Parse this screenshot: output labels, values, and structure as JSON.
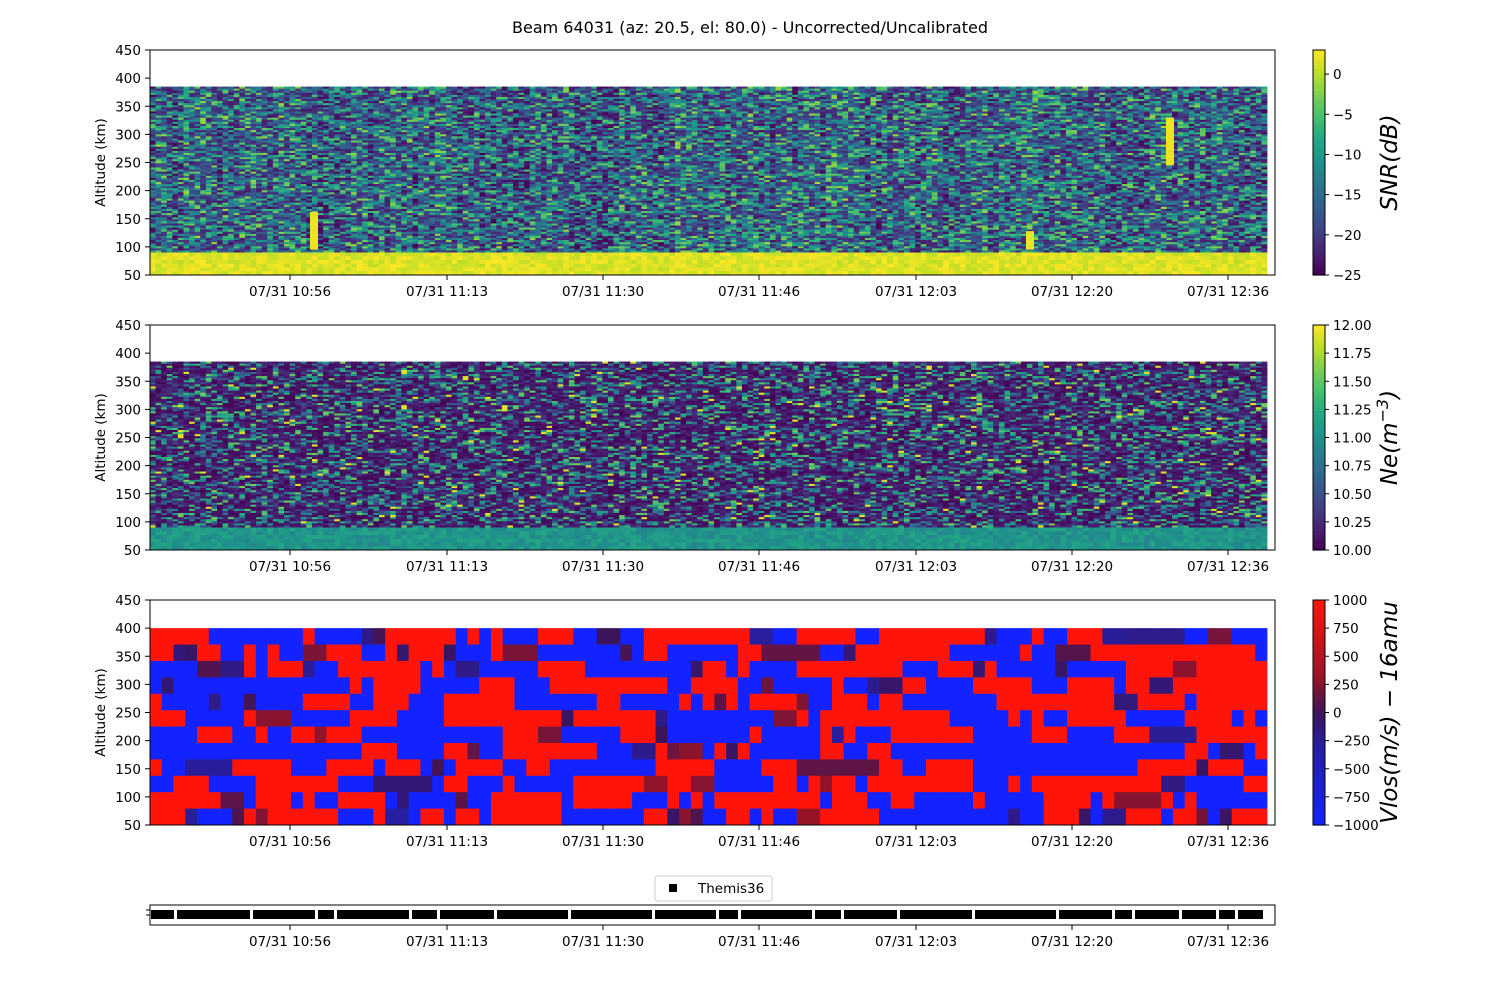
{
  "title": "Beam 64031 (az: 20.5, el: 80.0) - Uncorrected/Uncalibrated",
  "x_tick_labels": [
    "07/31 10:56",
    "07/31 11:13",
    "07/31 11:30",
    "07/31 11:46",
    "07/31 12:03",
    "07/31 12:20",
    "07/31 12:36"
  ],
  "y_tick_labels": [
    "50",
    "100",
    "150",
    "200",
    "250",
    "300",
    "350",
    "400",
    "450"
  ],
  "y_axis_label": "Altitude (km)",
  "legend": {
    "label": "Themis36",
    "marker": "square",
    "color": "#000000"
  },
  "chart_data": [
    {
      "type": "heatmap",
      "ylabel": "Altitude (km)",
      "ylim": [
        50,
        450
      ],
      "data_ylim": [
        50,
        385
      ],
      "x_time_range": [
        "07/31 10:43",
        "07/31 12:39"
      ],
      "colormap": "viridis",
      "colorbar": {
        "label": "SNR(dB)",
        "range": [
          -25,
          3
        ],
        "tick_values": [
          0,
          -5,
          -10,
          -15,
          -20,
          -25
        ],
        "tick_labels": [
          "0",
          "−5",
          "−10",
          "−15",
          "−20",
          "−25"
        ]
      },
      "notes": [
        "saturated band below ~90 km",
        "yellow spikes near 10:58, 12:16, 12:29"
      ]
    },
    {
      "type": "heatmap",
      "ylabel": "Altitude (km)",
      "ylim": [
        50,
        450
      ],
      "data_ylim": [
        50,
        385
      ],
      "x_time_range": [
        "07/31 10:43",
        "07/31 12:39"
      ],
      "colormap": "viridis",
      "colorbar": {
        "label": "Ne(m^-3)",
        "label_main": "Ne(m",
        "label_exp": "−3",
        "label_close": ")",
        "range": [
          10,
          12
        ],
        "tick_values": [
          12.0,
          11.75,
          11.5,
          11.25,
          11.0,
          10.75,
          10.5,
          10.25,
          10.0
        ],
        "tick_labels": [
          "12.00",
          "11.75",
          "11.50",
          "11.25",
          "11.00",
          "10.75",
          "10.50",
          "10.25",
          "10.00"
        ]
      }
    },
    {
      "type": "heatmap",
      "ylabel": "Altitude (km)",
      "ylim": [
        50,
        450
      ],
      "data_ylim": [
        50,
        400
      ],
      "x_time_range": [
        "07/31 10:43",
        "07/31 12:39"
      ],
      "colormap": "bwr-dark",
      "colorbar": {
        "label": "Vlos(m/s) − 16amu",
        "range": [
          -1000,
          1000
        ],
        "tick_values": [
          1000,
          750,
          500,
          250,
          0,
          -250,
          -500,
          -750,
          -1000
        ],
        "tick_labels": [
          "1000",
          "750",
          "500",
          "250",
          "0",
          "−250",
          "−500",
          "−750",
          "−1000"
        ]
      }
    },
    {
      "type": "timeline",
      "series": [
        {
          "name": "Themis36",
          "state": "active"
        }
      ],
      "gaps_at": [
        "10:54",
        "11:00",
        "11:06",
        "11:13",
        "11:20",
        "11:24",
        "11:29",
        "11:35",
        "11:41",
        "11:50",
        "11:54",
        "12:01",
        "12:08",
        "12:14",
        "12:22",
        "12:28"
      ]
    }
  ]
}
